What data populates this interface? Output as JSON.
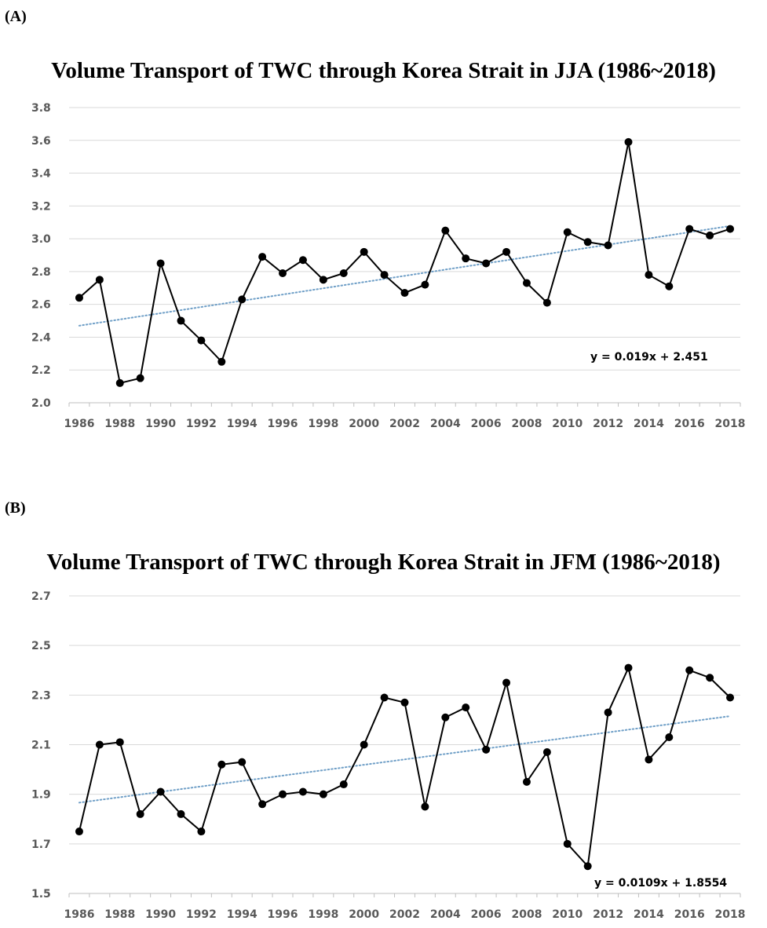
{
  "chart_data": [
    {
      "type": "line",
      "panel_label": "(A)",
      "title": "Volume Transport of TWC through Korea Strait in JJA (1986~2018)",
      "x": [
        1986,
        1987,
        1988,
        1989,
        1990,
        1991,
        1992,
        1993,
        1994,
        1995,
        1996,
        1997,
        1998,
        1999,
        2000,
        2001,
        2002,
        2003,
        2004,
        2005,
        2006,
        2007,
        2008,
        2009,
        2010,
        2011,
        2012,
        2013,
        2014,
        2015,
        2016,
        2017,
        2018
      ],
      "series": [
        {
          "values": [
            2.64,
            2.75,
            2.12,
            2.15,
            2.85,
            2.5,
            2.38,
            2.25,
            2.63,
            2.89,
            2.79,
            2.87,
            2.75,
            2.79,
            2.92,
            2.78,
            2.67,
            2.72,
            3.05,
            2.88,
            2.85,
            2.92,
            2.73,
            2.61,
            3.04,
            2.98,
            2.96,
            3.59,
            2.78,
            2.71,
            3.06,
            3.02,
            3.06
          ],
          "color": "#000000"
        }
      ],
      "trendline": {
        "slope": 0.019,
        "intercept": 2.451,
        "color": "#6f9fc7",
        "style": "dotted"
      },
      "equation": "y = 0.019x + 2.451",
      "xticks": [
        "1986",
        "1988",
        "1990",
        "1992",
        "1994",
        "1996",
        "1998",
        "2000",
        "2002",
        "2004",
        "2006",
        "2008",
        "2010",
        "2012",
        "2014",
        "2016",
        "2018"
      ],
      "yticks": [
        "2.0",
        "2.2",
        "2.4",
        "2.6",
        "2.8",
        "3.0",
        "3.2",
        "3.4",
        "3.6",
        "3.8"
      ],
      "ylim": [
        2.0,
        3.8
      ],
      "grid": true,
      "xlabel": "",
      "ylabel": ""
    },
    {
      "type": "line",
      "panel_label": "(B)",
      "title": "Volume Transport of TWC through Korea Strait in JFM (1986~2018)",
      "x": [
        1986,
        1987,
        1988,
        1989,
        1990,
        1991,
        1992,
        1993,
        1994,
        1995,
        1996,
        1997,
        1998,
        1999,
        2000,
        2001,
        2002,
        2003,
        2004,
        2005,
        2006,
        2007,
        2008,
        2009,
        2010,
        2011,
        2012,
        2013,
        2014,
        2015,
        2016,
        2017,
        2018
      ],
      "series": [
        {
          "values": [
            1.75,
            2.1,
            2.11,
            1.82,
            1.91,
            1.82,
            1.75,
            2.02,
            2.03,
            1.86,
            1.9,
            1.91,
            1.9,
            1.94,
            2.1,
            2.29,
            2.27,
            1.85,
            2.21,
            2.25,
            2.08,
            2.35,
            1.95,
            2.07,
            1.7,
            1.61,
            2.23,
            2.41,
            2.04,
            2.13,
            2.4,
            2.37,
            2.29
          ],
          "color": "#000000"
        }
      ],
      "trendline": {
        "slope": 0.0109,
        "intercept": 1.8554,
        "color": "#6f9fc7",
        "style": "dotted"
      },
      "equation": "y = 0.0109x + 1.8554",
      "xticks": [
        "1986",
        "1988",
        "1990",
        "1992",
        "1994",
        "1996",
        "1998",
        "2000",
        "2002",
        "2004",
        "2006",
        "2008",
        "2010",
        "2012",
        "2014",
        "2016",
        "2018"
      ],
      "yticks": [
        "1.5",
        "1.7",
        "1.9",
        "2.1",
        "2.3",
        "2.5",
        "2.7"
      ],
      "ylim": [
        1.5,
        2.7
      ],
      "grid": true,
      "xlabel": "",
      "ylabel": ""
    }
  ]
}
